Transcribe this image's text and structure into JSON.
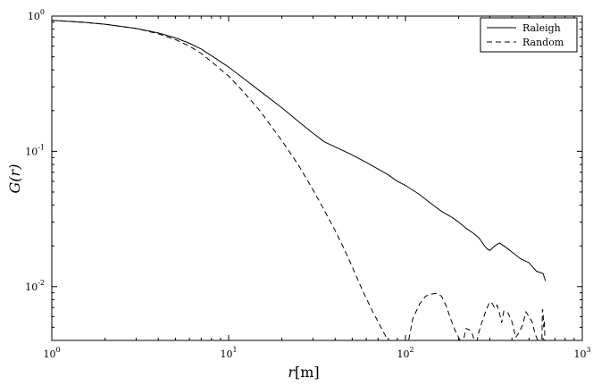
{
  "chart_data": {
    "type": "line",
    "xscale": "log",
    "yscale": "log",
    "xlim": [
      1,
      1000
    ],
    "ylim": [
      0.004,
      1
    ],
    "xlabel_var": "r",
    "xlabel_unit": "[m]",
    "ylabel": "G(r)",
    "grid": false,
    "legend_position": "top-right",
    "x_ticks": [
      {
        "value": 1,
        "base": "10",
        "exp": "0"
      },
      {
        "value": 10,
        "base": "10",
        "exp": "1"
      },
      {
        "value": 100,
        "base": "10",
        "exp": "2"
      },
      {
        "value": 1000,
        "base": "10",
        "exp": "3"
      }
    ],
    "y_ticks": [
      {
        "value": 1,
        "base": "10",
        "exp": "0"
      },
      {
        "value": 0.1,
        "base": "10",
        "exp": "-1"
      },
      {
        "value": 0.01,
        "base": "10",
        "exp": "-2"
      }
    ],
    "series": [
      {
        "name": "Raleigh",
        "dash": "solid",
        "x": [
          1,
          1.5,
          2,
          3,
          4,
          5,
          6,
          7,
          8,
          10,
          12,
          15,
          20,
          25,
          30,
          35,
          40,
          50,
          60,
          70,
          80,
          90,
          100,
          120,
          140,
          160,
          180,
          200,
          220,
          240,
          260,
          280,
          290,
          300,
          320,
          340,
          360,
          380,
          400,
          450,
          500,
          550,
          600,
          620
        ],
        "y": [
          0.93,
          0.9,
          0.87,
          0.81,
          0.75,
          0.69,
          0.63,
          0.57,
          0.51,
          0.42,
          0.35,
          0.28,
          0.21,
          0.165,
          0.136,
          0.117,
          0.108,
          0.094,
          0.083,
          0.074,
          0.067,
          0.06,
          0.056,
          0.048,
          0.041,
          0.036,
          0.033,
          0.03,
          0.027,
          0.025,
          0.023,
          0.02,
          0.019,
          0.0185,
          0.02,
          0.021,
          0.02,
          0.019,
          0.018,
          0.016,
          0.015,
          0.013,
          0.0125,
          0.011
        ]
      },
      {
        "name": "Random",
        "dash": "dashed",
        "x": [
          1,
          1.5,
          2,
          3,
          4,
          5,
          6,
          7,
          8,
          10,
          12,
          15,
          20,
          25,
          30,
          35,
          40,
          45,
          50,
          55,
          60,
          65,
          70,
          75,
          80,
          85
        ],
        "y": [
          0.93,
          0.9,
          0.87,
          0.81,
          0.74,
          0.67,
          0.6,
          0.53,
          0.46,
          0.36,
          0.28,
          0.2,
          0.12,
          0.078,
          0.052,
          0.036,
          0.026,
          0.019,
          0.014,
          0.0105,
          0.0082,
          0.0066,
          0.0055,
          0.0046,
          0.004,
          0.0035
        ]
      },
      {
        "name": "Random",
        "dash": "dashed",
        "x": [
          100,
          110,
          120,
          130,
          140,
          150,
          160,
          170,
          180,
          190,
          200,
          210,
          220,
          230,
          240,
          250,
          260,
          270,
          280,
          290,
          300,
          310,
          320,
          330,
          340,
          350,
          360,
          380,
          400,
          420,
          440,
          460,
          480,
          500,
          520,
          540,
          560,
          580
        ],
        "y": [
          0.003,
          0.0058,
          0.0074,
          0.0085,
          0.0088,
          0.0089,
          0.0085,
          0.0072,
          0.0058,
          0.0048,
          0.0042,
          0.0037,
          0.0049,
          0.0048,
          0.0044,
          0.0036,
          0.0046,
          0.0054,
          0.0062,
          0.007,
          0.0077,
          0.0075,
          0.0069,
          0.0073,
          0.0064,
          0.0054,
          0.0066,
          0.0064,
          0.0055,
          0.0042,
          0.0046,
          0.0052,
          0.0065,
          0.006,
          0.0055,
          0.0045,
          0.004,
          0.0035
        ]
      },
      {
        "name": "Random",
        "dash": "dashed",
        "x": [
          590,
          595,
          600,
          605,
          610,
          615
        ],
        "y": [
          0.0035,
          0.0068,
          0.0065,
          0.005,
          0.0055,
          0.0038
        ]
      }
    ],
    "legend": [
      {
        "label": "Raleigh",
        "dash": "solid"
      },
      {
        "label": "Random",
        "dash": "dashed"
      }
    ]
  }
}
